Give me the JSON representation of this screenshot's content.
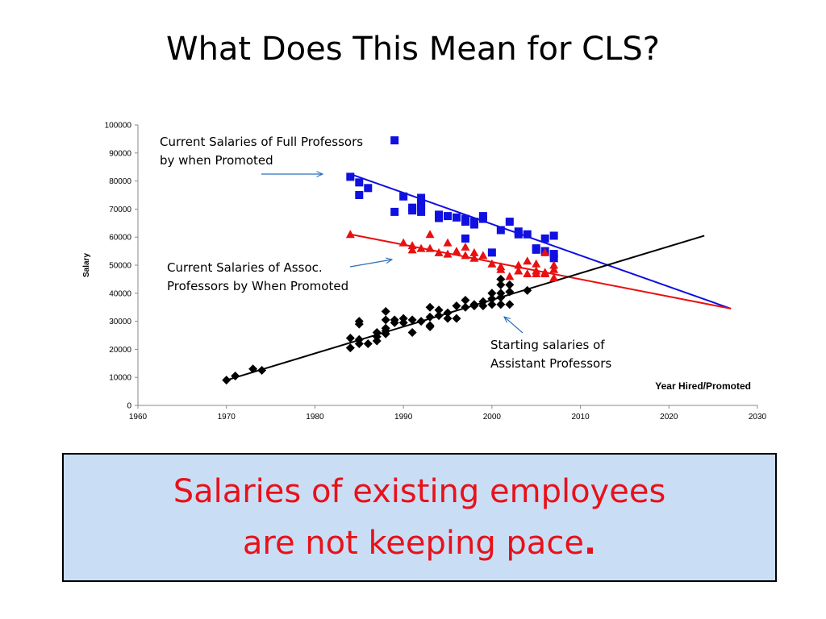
{
  "slide": {
    "title": "What Does This Mean for CLS?",
    "callout_line1": "Salaries of existing employees",
    "callout_line2": "are not keeping pace",
    "callout_period": "."
  },
  "colors": {
    "full": "#1010e0",
    "assoc": "#e81010",
    "asst": "#000000",
    "callout_bg": "#c9def5",
    "callout_text": "#e8111a"
  },
  "chart_data": {
    "type": "scatter",
    "xlabel": "Year Hired/Promoted",
    "ylabel": "Salary",
    "xlim": [
      1960,
      2030
    ],
    "ylim": [
      0,
      100000
    ],
    "xticks": [
      1960,
      1970,
      1980,
      1990,
      2000,
      2010,
      2020,
      2030
    ],
    "yticks": [
      0,
      10000,
      20000,
      30000,
      40000,
      50000,
      60000,
      70000,
      80000,
      90000,
      100000
    ],
    "annotations": [
      {
        "id": "full",
        "lines": [
          "Current Salaries of Full Professors",
          "by when Promoted"
        ]
      },
      {
        "id": "assoc",
        "lines": [
          "Current Salaries of Assoc.",
          "Professors by When Promoted"
        ]
      },
      {
        "id": "asst",
        "lines": [
          "Starting salaries of",
          "Assistant Professors"
        ]
      }
    ],
    "series": [
      {
        "id": "full",
        "marker": "square",
        "points": [
          [
            1984,
            81500
          ],
          [
            1985,
            79500
          ],
          [
            1985,
            75000
          ],
          [
            1986,
            77500
          ],
          [
            1989,
            94500
          ],
          [
            1989,
            69000
          ],
          [
            1990,
            74500
          ],
          [
            1991,
            70500
          ],
          [
            1991,
            69500
          ],
          [
            1992,
            74000
          ],
          [
            1992,
            72000
          ],
          [
            1992,
            71000
          ],
          [
            1992,
            69000
          ],
          [
            1994,
            68000
          ],
          [
            1994,
            66800
          ],
          [
            1995,
            67500
          ],
          [
            1996,
            67000
          ],
          [
            1997,
            66500
          ],
          [
            1997,
            65500
          ],
          [
            1997,
            59500
          ],
          [
            1998,
            65500
          ],
          [
            1998,
            64500
          ],
          [
            1999,
            67500
          ],
          [
            1999,
            66500
          ],
          [
            2000,
            54500
          ],
          [
            2001,
            62500
          ],
          [
            2002,
            65500
          ],
          [
            2003,
            62000
          ],
          [
            2003,
            61000
          ],
          [
            2004,
            61000
          ],
          [
            2005,
            56000
          ],
          [
            2005,
            55500
          ],
          [
            2006,
            59500
          ],
          [
            2006,
            55000
          ],
          [
            2007,
            60500
          ],
          [
            2007,
            54000
          ],
          [
            2007,
            52500
          ]
        ],
        "trend": [
          [
            1984,
            82500
          ],
          [
            2027,
            34500
          ]
        ]
      },
      {
        "id": "assoc",
        "marker": "triangle",
        "points": [
          [
            1984,
            61000
          ],
          [
            1990,
            58000
          ],
          [
            1991,
            57000
          ],
          [
            1991,
            55500
          ],
          [
            1992,
            56000
          ],
          [
            1993,
            61000
          ],
          [
            1993,
            56000
          ],
          [
            1994,
            54500
          ],
          [
            1995,
            58000
          ],
          [
            1995,
            54000
          ],
          [
            1996,
            55000
          ],
          [
            1997,
            56500
          ],
          [
            1997,
            53500
          ],
          [
            1998,
            54500
          ],
          [
            1998,
            52500
          ],
          [
            1999,
            53500
          ],
          [
            2000,
            50500
          ],
          [
            2001,
            49500
          ],
          [
            2001,
            48500
          ],
          [
            2002,
            46000
          ],
          [
            2003,
            50000
          ],
          [
            2003,
            48000
          ],
          [
            2004,
            51500
          ],
          [
            2004,
            47000
          ],
          [
            2005,
            50500
          ],
          [
            2005,
            48000
          ],
          [
            2005,
            47000
          ],
          [
            2006,
            54500
          ],
          [
            2006,
            47500
          ],
          [
            2006,
            47000
          ],
          [
            2007,
            50000
          ],
          [
            2007,
            48500
          ],
          [
            2007,
            45500
          ]
        ],
        "trend": [
          [
            1984,
            61000
          ],
          [
            2027,
            34500
          ]
        ]
      },
      {
        "id": "asst",
        "marker": "diamond",
        "points": [
          [
            1970,
            9000
          ],
          [
            1971,
            10500
          ],
          [
            1973,
            13000
          ],
          [
            1974,
            12500
          ],
          [
            1984,
            24000
          ],
          [
            1984,
            20500
          ],
          [
            1985,
            30000
          ],
          [
            1985,
            29000
          ],
          [
            1985,
            23500
          ],
          [
            1985,
            22000
          ],
          [
            1986,
            22000
          ],
          [
            1987,
            26000
          ],
          [
            1987,
            24500
          ],
          [
            1987,
            23000
          ],
          [
            1988,
            33500
          ],
          [
            1988,
            30500
          ],
          [
            1988,
            27500
          ],
          [
            1988,
            26500
          ],
          [
            1988,
            25500
          ],
          [
            1989,
            30500
          ],
          [
            1989,
            29500
          ],
          [
            1990,
            31000
          ],
          [
            1990,
            29500
          ],
          [
            1991,
            30500
          ],
          [
            1991,
            26000
          ],
          [
            1992,
            30000
          ],
          [
            1993,
            35000
          ],
          [
            1993,
            31500
          ],
          [
            1993,
            28500
          ],
          [
            1993,
            28000
          ],
          [
            1994,
            34000
          ],
          [
            1994,
            32000
          ],
          [
            1995,
            33000
          ],
          [
            1995,
            31000
          ],
          [
            1996,
            35500
          ],
          [
            1996,
            31000
          ],
          [
            1997,
            37500
          ],
          [
            1997,
            35000
          ],
          [
            1998,
            35500
          ],
          [
            1998,
            36000
          ],
          [
            1999,
            37000
          ],
          [
            1999,
            35500
          ],
          [
            2000,
            40000
          ],
          [
            2000,
            38000
          ],
          [
            2000,
            36000
          ],
          [
            2001,
            45000
          ],
          [
            2001,
            43000
          ],
          [
            2001,
            40000
          ],
          [
            2001,
            38500
          ],
          [
            2001,
            36000
          ],
          [
            2002,
            43000
          ],
          [
            2002,
            40500
          ],
          [
            2002,
            36000
          ],
          [
            2004,
            41000
          ]
        ],
        "trend": [
          [
            1970,
            9000
          ],
          [
            2024,
            60500
          ]
        ]
      }
    ]
  }
}
